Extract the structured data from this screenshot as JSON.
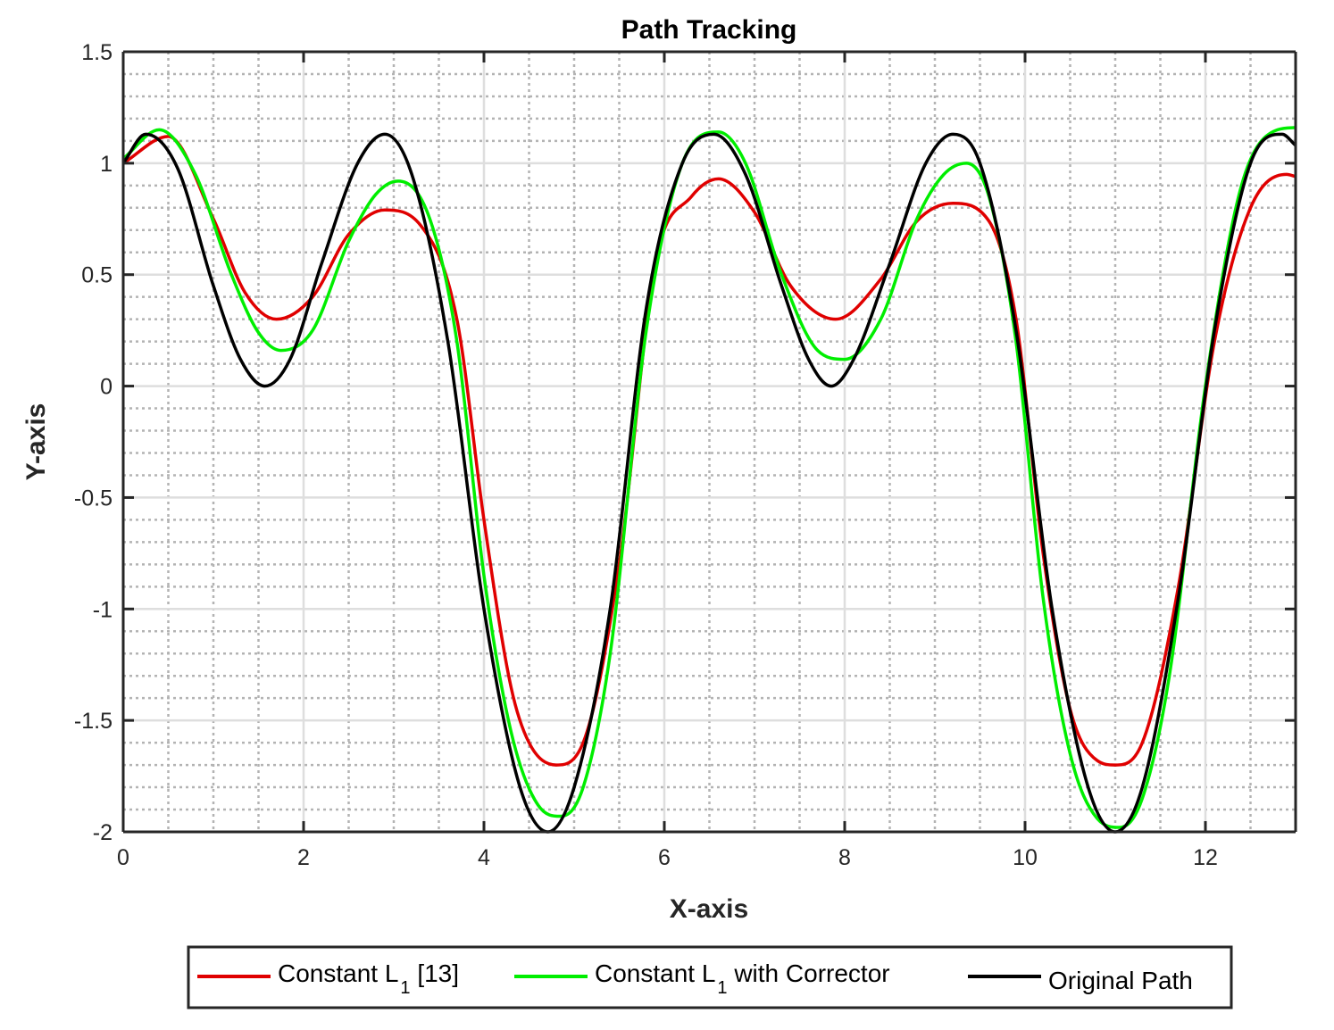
{
  "chart_data": {
    "type": "line",
    "title": "Path Tracking",
    "xlabel": "X-axis",
    "ylabel": "Y-axis",
    "xlim": [
      0,
      13
    ],
    "ylim": [
      -2,
      1.5
    ],
    "xticks": [
      0,
      2,
      4,
      6,
      8,
      10,
      12
    ],
    "yticks": [
      -2,
      -1.5,
      -1,
      -0.5,
      0,
      0.5,
      1,
      1.5
    ],
    "xtick_labels": [
      "0",
      "2",
      "4",
      "6",
      "8",
      "10",
      "12"
    ],
    "ytick_labels": [
      "-2",
      "-1.5",
      "-1",
      "-0.5",
      "0",
      "0.5",
      "1",
      "1.5"
    ],
    "grid": true,
    "minor_grid": true,
    "legend_position": "bottom-outside",
    "series": [
      {
        "name": "Constant L1 [13]",
        "legend_main": "Constant L",
        "legend_sub": "1",
        "legend_suffix": " [13]",
        "color": "#e00000",
        "x": [
          0,
          0.5,
          1.0,
          1.35,
          1.7,
          2.1,
          2.5,
          2.9,
          3.3,
          3.7,
          4.0,
          4.3,
          4.5,
          4.8,
          5.1,
          5.5,
          5.9,
          6.3,
          6.6,
          7.0,
          7.4,
          7.9,
          8.4,
          8.8,
          9.2,
          9.6,
          9.9,
          10.2,
          10.5,
          10.8,
          11.0,
          11.3,
          11.7,
          12.1,
          12.5,
          12.9,
          13.0
        ],
        "y": [
          1.0,
          1.12,
          0.75,
          0.42,
          0.3,
          0.4,
          0.68,
          0.79,
          0.72,
          0.3,
          -0.6,
          -1.35,
          -1.6,
          -1.7,
          -1.6,
          -0.8,
          0.55,
          0.85,
          0.93,
          0.78,
          0.45,
          0.3,
          0.48,
          0.74,
          0.82,
          0.74,
          0.3,
          -0.75,
          -1.45,
          -1.68,
          -1.7,
          -1.6,
          -0.9,
          0.2,
          0.8,
          0.95,
          0.94
        ]
      },
      {
        "name": "Constant L1 with Corrector",
        "legend_main": "Constant L",
        "legend_sub": "1",
        "legend_suffix": " with Corrector",
        "color": "#00ee00",
        "x": [
          0,
          0.4,
          0.8,
          1.2,
          1.5,
          1.75,
          2.1,
          2.5,
          2.8,
          3.05,
          3.4,
          3.7,
          4.0,
          4.3,
          4.6,
          4.85,
          5.1,
          5.4,
          5.8,
          6.2,
          6.6,
          6.9,
          7.3,
          7.7,
          8.0,
          8.4,
          8.8,
          9.1,
          9.35,
          9.6,
          9.9,
          10.2,
          10.5,
          10.8,
          11.05,
          11.3,
          11.6,
          12.0,
          12.4,
          12.8,
          13.0
        ],
        "y": [
          1.02,
          1.15,
          0.95,
          0.5,
          0.24,
          0.16,
          0.25,
          0.65,
          0.86,
          0.92,
          0.75,
          0.2,
          -0.85,
          -1.55,
          -1.88,
          -1.93,
          -1.8,
          -1.2,
          0.25,
          1.0,
          1.14,
          1.0,
          0.5,
          0.16,
          0.12,
          0.3,
          0.75,
          0.95,
          1.0,
          0.85,
          0.2,
          -0.95,
          -1.65,
          -1.94,
          -1.98,
          -1.85,
          -1.3,
          0.0,
          0.9,
          1.15,
          1.16
        ]
      },
      {
        "name": "Original Path",
        "legend_main": "Original Path",
        "legend_sub": "",
        "legend_suffix": "",
        "color": "#000000",
        "x": [
          0,
          0.25,
          0.6,
          1.0,
          1.3,
          1.57,
          1.85,
          2.2,
          2.6,
          2.9,
          3.2,
          3.6,
          4.0,
          4.4,
          4.71,
          5.0,
          5.4,
          5.8,
          6.2,
          6.55,
          6.9,
          7.3,
          7.6,
          7.85,
          8.1,
          8.5,
          8.9,
          9.2,
          9.5,
          9.9,
          10.3,
          10.7,
          11.0,
          11.3,
          11.7,
          12.1,
          12.5,
          12.85,
          13.0
        ],
        "y": [
          1.0,
          1.13,
          0.98,
          0.45,
          0.12,
          0.0,
          0.12,
          0.55,
          1.0,
          1.13,
          0.95,
          0.2,
          -1.0,
          -1.8,
          -2.0,
          -1.8,
          -1.0,
          0.35,
          1.0,
          1.13,
          0.95,
          0.45,
          0.12,
          0.0,
          0.12,
          0.55,
          1.0,
          1.13,
          1.0,
          0.25,
          -1.0,
          -1.8,
          -2.0,
          -1.8,
          -0.95,
          0.25,
          1.0,
          1.13,
          1.08
        ]
      }
    ]
  }
}
